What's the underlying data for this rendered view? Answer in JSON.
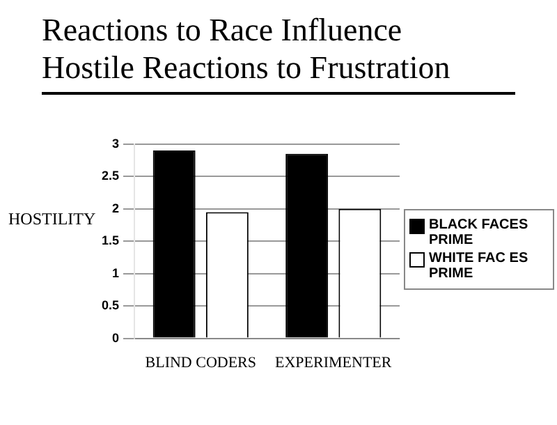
{
  "chart_data": {
    "type": "bar",
    "title": "Reactions to Race Influence\nHostile Reactions to Frustration",
    "ylabel": "HOSTILITY",
    "categories": [
      "BLIND CODERS",
      "EXPERIMENTER"
    ],
    "series": [
      {
        "name": "BLACK FACES PRIME",
        "color": "#000000",
        "values": [
          2.9,
          2.85
        ]
      },
      {
        "name": "WHITE FAC ES PRIME",
        "color": "#ffffff",
        "values": [
          1.95,
          2.0
        ]
      }
    ],
    "ylim": [
      0,
      3
    ],
    "yticks": [
      0,
      0.5,
      1,
      1.5,
      2,
      2.5,
      3
    ],
    "grid": "y",
    "legend": "right"
  }
}
